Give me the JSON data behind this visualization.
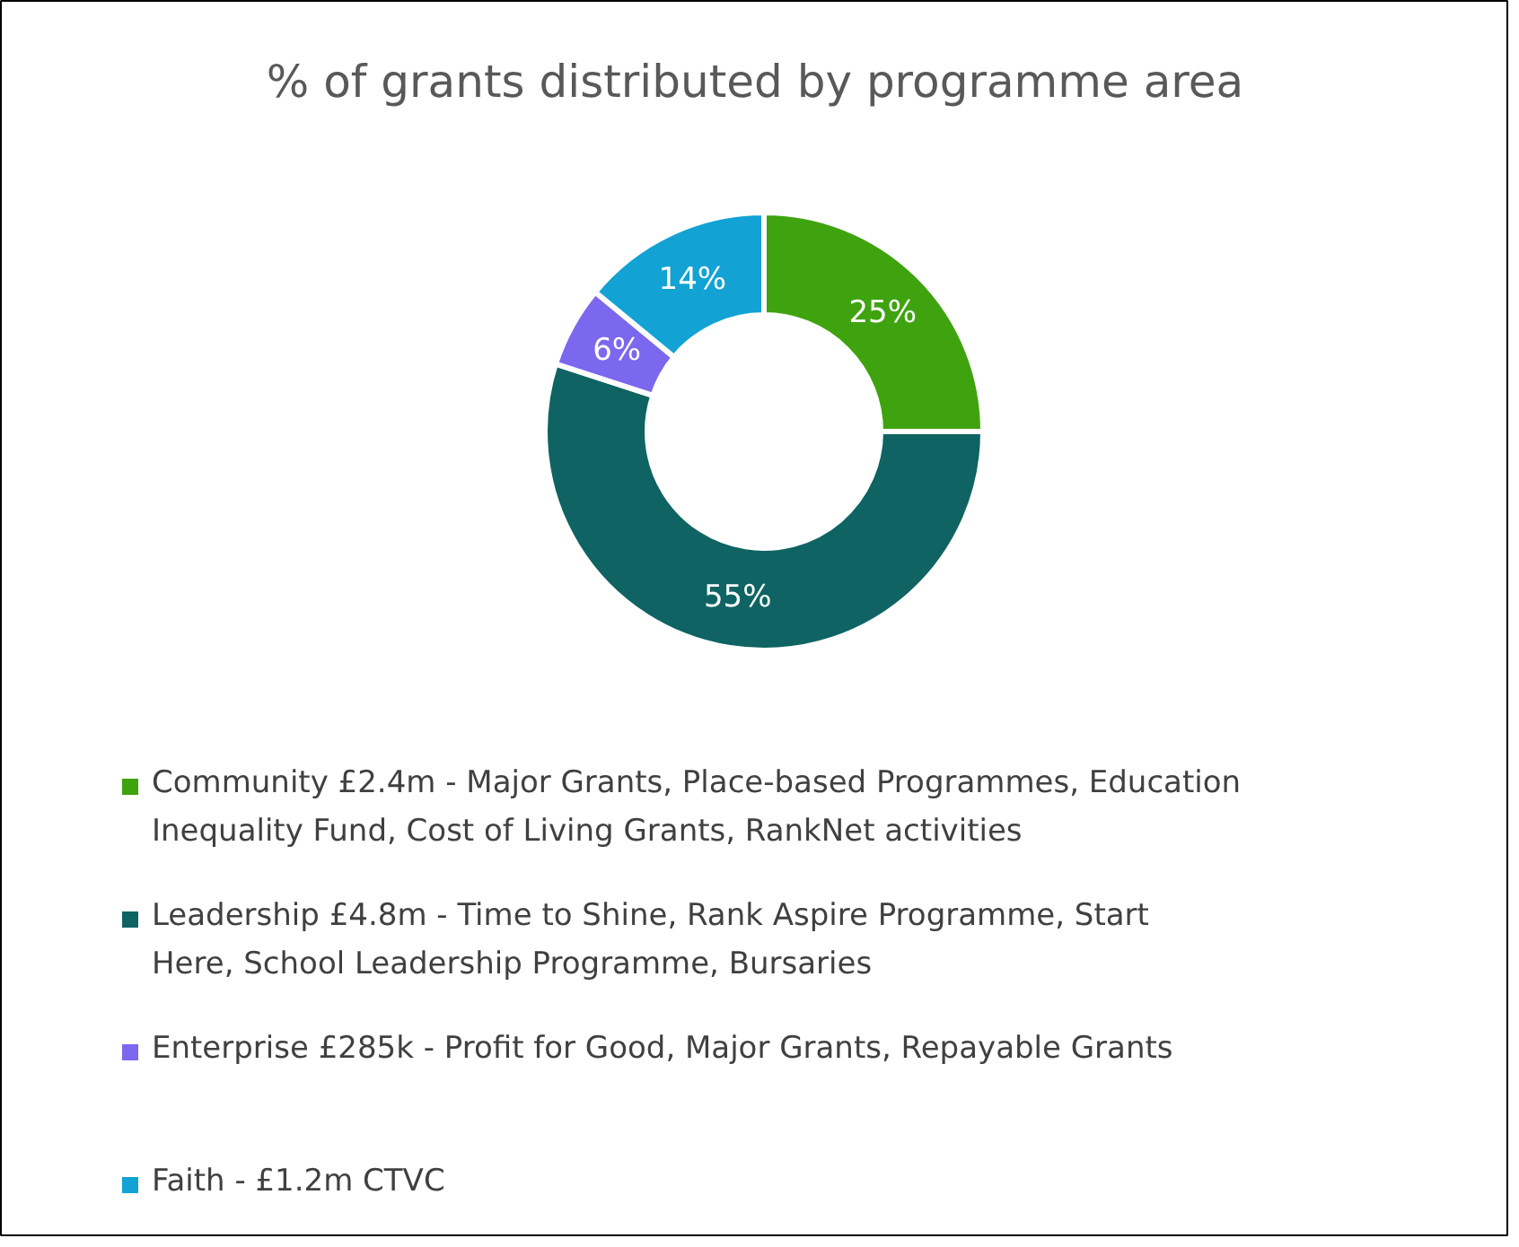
{
  "chart_data": {
    "type": "donut",
    "title": "% of grants distributed by programme area",
    "categories": [
      "Community £2.4m - Major Grants, Place-based Programmes, Education Inequality Fund, Cost of Living Grants, RankNet activities",
      "Leadership £4.8m - Time to Shine, Rank Aspire Programme, Start Here, School Leadership Programme, Bursaries",
      "Enterprise £285k - Profit for Good, Major Grants, Repayable Grants",
      "Faith - £1.2m CTVC"
    ],
    "values": [
      25,
      55,
      6,
      14
    ],
    "colors": [
      "#3fa30f",
      "#0f6363",
      "#7b68ee",
      "#12a2d4"
    ],
    "value_labels": [
      "25%",
      "55%",
      "6%",
      "14%"
    ],
    "legend": "bottom"
  }
}
